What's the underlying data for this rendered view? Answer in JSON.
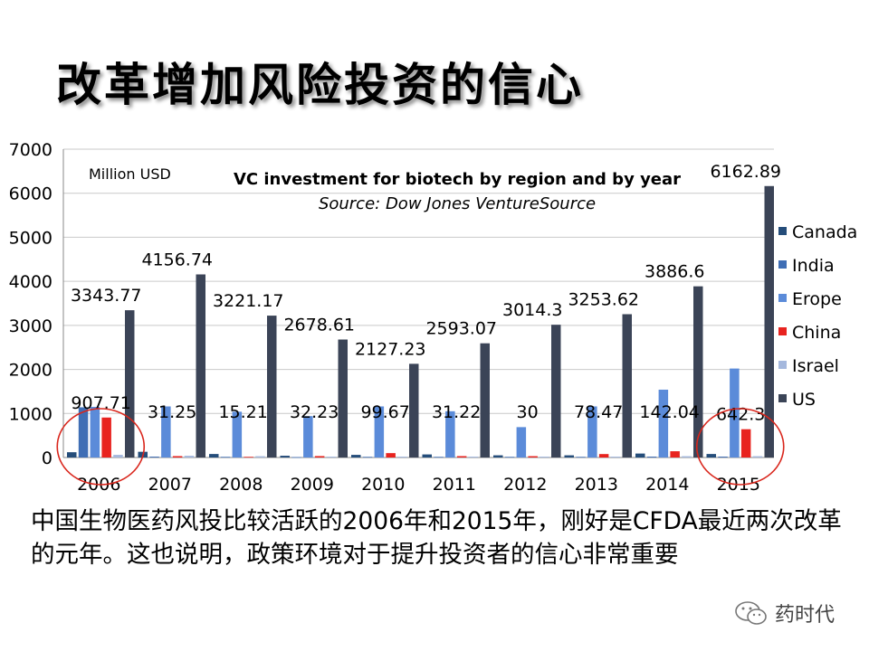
{
  "slide": {
    "title": "改革增加风险投资的信心",
    "caption": "中国生物医药风投比较活跃的2006年和2015年，刚好是CFDA最近两次改革的元年。这也说明，政策环境对于提升投资者的信心非常重要",
    "watermark": "药时代",
    "watermark_icon": "wechat-icon"
  },
  "chart_data": {
    "type": "bar",
    "title": "VC investment for biotech by region and by year",
    "subtitle": "Source: Dow Jones VentureSource",
    "unit_label": "Million USD",
    "xlabel": "",
    "ylabel": "",
    "ylim": [
      0,
      7000
    ],
    "yticks": [
      0,
      1000,
      2000,
      3000,
      4000,
      5000,
      6000,
      7000
    ],
    "grid": true,
    "legend_position": "right",
    "categories": [
      "2006",
      "2007",
      "2008",
      "2009",
      "2010",
      "2011",
      "2012",
      "2013",
      "2014",
      "2015"
    ],
    "series": [
      {
        "name": "Canada",
        "color": "#254d7a",
        "values": [
          120,
          130,
          80,
          40,
          60,
          70,
          50,
          50,
          90,
          80
        ]
      },
      {
        "name": "India",
        "color": "#3f6eb5",
        "values": [
          1140,
          20,
          15,
          10,
          15,
          15,
          15,
          15,
          20,
          20
        ]
      },
      {
        "name": "Erope",
        "color": "#5b8bd9",
        "values": [
          1150,
          1160,
          1040,
          940,
          1160,
          1050,
          690,
          1160,
          1540,
          2020
        ]
      },
      {
        "name": "China",
        "color": "#e8231f",
        "values": [
          907.71,
          31.25,
          15.21,
          32.23,
          99.67,
          31.22,
          30,
          78.47,
          142.04,
          642.3
        ]
      },
      {
        "name": "Israel",
        "color": "#a5b8dd",
        "values": [
          60,
          40,
          30,
          20,
          20,
          20,
          20,
          20,
          30,
          30
        ]
      },
      {
        "name": "US",
        "color": "#3b4457",
        "values": [
          3343.77,
          4156.74,
          3221.17,
          2678.61,
          2127.23,
          2593.07,
          3014.3,
          3253.62,
          3886.6,
          6162.89
        ]
      }
    ],
    "data_labels": {
      "China": [
        "907.71",
        "31.25",
        "15.21",
        "32.23",
        "99.67",
        "31.22",
        "30",
        "78.47",
        "142.04",
        "642.3"
      ],
      "US": [
        "3343.77",
        "4156.74",
        "3221.17",
        "2678.61",
        "2127.23",
        "2593.07",
        "3014.3",
        "3253.62",
        "3886.6",
        "6162.89"
      ]
    },
    "highlighted_categories": [
      "2006",
      "2015"
    ],
    "highlight_color": "#d9261c"
  }
}
